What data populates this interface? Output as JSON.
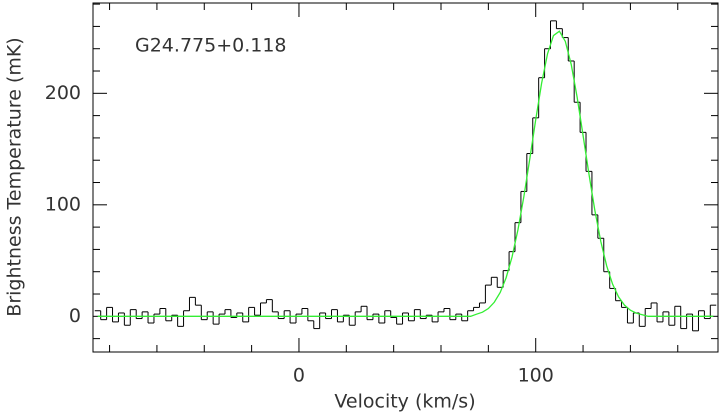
{
  "chart_data": {
    "type": "line",
    "annotation": "G24.775+0.118",
    "xlabel": "Velocity (km/s)",
    "ylabel": "Brightness Temperature (mK)",
    "xlim": [
      -87,
      177
    ],
    "ylim": [
      -32,
      281
    ],
    "xticks": [
      0,
      100
    ],
    "yticks": [
      0,
      100,
      200
    ],
    "xminorticks": [
      -80,
      -60,
      -40,
      -20,
      20,
      40,
      60,
      80,
      120,
      140,
      160
    ],
    "yminorticks": [
      -20,
      20,
      40,
      60,
      80,
      120,
      140,
      160,
      180,
      220,
      240,
      260,
      280
    ],
    "x": [
      -85,
      -82.5,
      -80,
      -77.5,
      -75,
      -72.5,
      -70,
      -67.5,
      -65,
      -62.5,
      -60,
      -57.5,
      -55,
      -52.5,
      -50,
      -47.5,
      -45,
      -42.5,
      -40,
      -37.5,
      -35,
      -32.5,
      -30,
      -27.5,
      -25,
      -22.5,
      -20,
      -17.5,
      -15,
      -12.5,
      -10,
      -7.5,
      -5,
      -2.5,
      0,
      2.5,
      5,
      7.5,
      10,
      12.5,
      15,
      17.5,
      20,
      22.5,
      25,
      27.5,
      30,
      32.5,
      35,
      37.5,
      40,
      42.5,
      45,
      47.5,
      50,
      52.5,
      55,
      57.5,
      60,
      62.5,
      65,
      67.5,
      70,
      72.5,
      75,
      77.5,
      80,
      82.5,
      85,
      87.5,
      90,
      92.5,
      95,
      97.5,
      100,
      102.5,
      105,
      107.5,
      110,
      112.5,
      115,
      117.5,
      120,
      122.5,
      125,
      127.5,
      130,
      132.5,
      135,
      137.5,
      140,
      142.5,
      145,
      147.5,
      150,
      152.5,
      155,
      157.5,
      160,
      162.5,
      165,
      167.5,
      170,
      172.5,
      175
    ],
    "series": [
      {
        "color": "#000000",
        "drawstyle": "steps-mid",
        "values": [
          5,
          -3,
          8,
          -5,
          3,
          -8,
          6,
          -2,
          4,
          -6,
          2,
          7,
          -4,
          1,
          -9,
          5,
          17,
          10,
          -3,
          4,
          -7,
          2,
          6,
          -1,
          3,
          -5,
          8,
          1,
          12,
          15,
          4,
          -2,
          5,
          -6,
          2,
          7,
          -4,
          -11,
          3,
          -2,
          6,
          -5,
          1,
          -8,
          4,
          9,
          -3,
          2,
          -6,
          5,
          -1,
          -7,
          3,
          -4,
          6,
          -2,
          1,
          -5,
          4,
          7,
          -3,
          2,
          -4,
          5,
          8,
          12,
          28,
          35,
          26,
          41,
          58,
          84,
          112,
          146,
          178,
          214,
          240,
          265,
          258,
          250,
          229,
          192,
          165,
          130,
          91,
          70,
          40,
          25,
          14,
          8,
          -6,
          3,
          -9,
          7,
          12,
          -5,
          4,
          -8,
          9,
          -11,
          2,
          -13,
          5,
          -2,
          10
        ]
      },
      {
        "color": "#33ee33",
        "drawstyle": "line",
        "values": [
          0,
          0,
          0,
          0,
          0,
          0,
          0,
          0,
          0,
          0,
          0,
          0,
          0,
          0,
          0,
          0,
          0,
          0,
          0,
          0,
          0,
          0,
          0,
          0,
          0,
          0,
          0,
          0,
          0,
          0,
          0,
          0,
          0,
          0,
          0,
          0,
          0,
          0,
          0,
          0,
          0,
          0,
          0,
          0,
          0,
          0,
          0,
          0,
          0,
          0,
          0,
          0,
          0,
          0,
          0,
          0,
          0,
          0,
          0,
          0,
          0,
          0,
          0,
          0,
          1.9,
          3.7,
          7.0,
          12.6,
          21.4,
          34.6,
          53.2,
          77.6,
          107.4,
          141.2,
          176.3,
          209.1,
          235.5,
          251.8,
          255.7,
          246.6,
          225.9,
          196.5,
          162.3,
          127.4,
          94.8,
          67.1,
          45.1,
          28.7,
          17.4,
          10.0,
          5.5,
          2.8,
          1.4,
          0,
          0,
          0,
          0,
          0,
          0,
          0,
          0,
          0,
          0,
          0,
          0
        ]
      }
    ]
  }
}
